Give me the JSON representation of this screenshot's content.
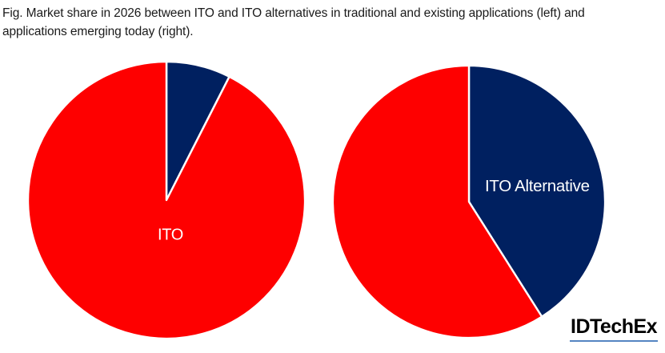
{
  "caption": {
    "lines": [
      "Fig. Market share in 2026 between ITO and ITO alternatives in traditional and existing applications (left) and",
      "applications emerging today (right)."
    ]
  },
  "logo": {
    "text": "IDTechEx"
  },
  "colors": {
    "ito_red": "#FE0000",
    "ito_alternative_navy": "#002060",
    "slice_divider": "#FFFFFF",
    "label_text": "#FFFFFF",
    "logo_underline": "#5585C2",
    "caption_text": "#1A1A1A"
  },
  "chart_data": [
    {
      "type": "pie",
      "position": "left",
      "name": "Traditional and existing applications",
      "start_angle_deg": 0,
      "direction": "clockwise",
      "legend_position": "none",
      "slices": [
        {
          "label": "ITO Alternative",
          "value": 7.5,
          "color": "#002060"
        },
        {
          "label": "ITO",
          "value": 92.5,
          "color": "#FE0000"
        }
      ],
      "visible_label": "ITO"
    },
    {
      "type": "pie",
      "position": "right",
      "name": "Applications emerging today",
      "start_angle_deg": 0,
      "direction": "clockwise",
      "legend_position": "none",
      "slices": [
        {
          "label": "ITO Alternative",
          "value": 41,
          "color": "#002060"
        },
        {
          "label": "ITO",
          "value": 59,
          "color": "#FE0000"
        }
      ],
      "visible_label": "ITO Alternative"
    }
  ]
}
